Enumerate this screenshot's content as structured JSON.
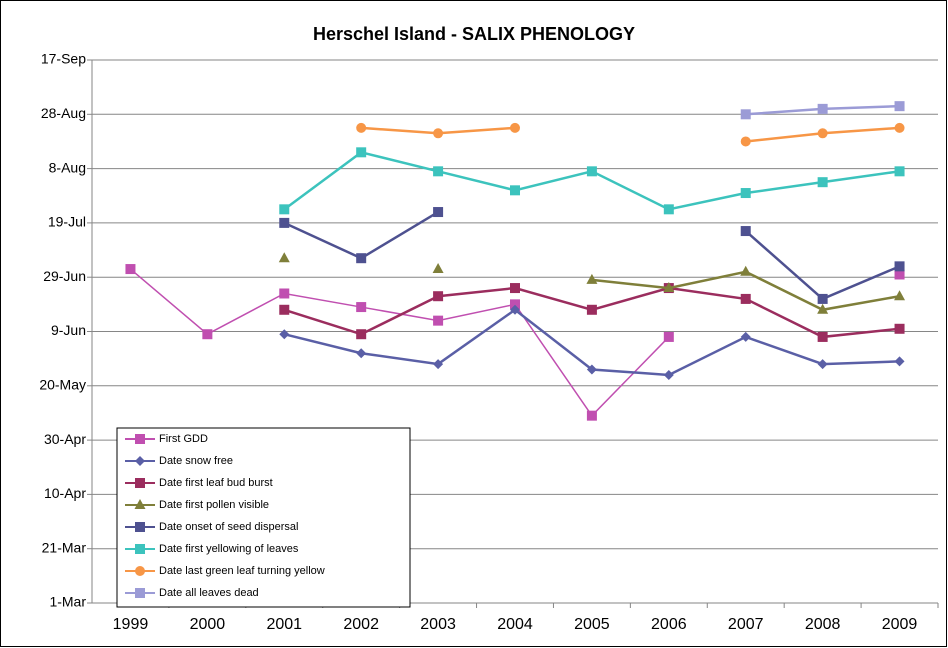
{
  "chart_data": {
    "type": "line",
    "title": "Herschel Island - SALIX PHENOLOGY",
    "categories": [
      "1999",
      "2000",
      "2001",
      "2002",
      "2003",
      "2004",
      "2005",
      "2006",
      "2007",
      "2008",
      "2009"
    ],
    "ylim": [
      60,
      260
    ],
    "yticks": [
      {
        "value": 60,
        "label": "1-Mar"
      },
      {
        "value": 80,
        "label": "21-Mar"
      },
      {
        "value": 100,
        "label": "10-Apr"
      },
      {
        "value": 120,
        "label": "30-Apr"
      },
      {
        "value": 140,
        "label": "20-May"
      },
      {
        "value": 160,
        "label": "9-Jun"
      },
      {
        "value": 180,
        "label": "29-Jun"
      },
      {
        "value": 200,
        "label": "19-Jul"
      },
      {
        "value": 220,
        "label": "8-Aug"
      },
      {
        "value": 240,
        "label": "28-Aug"
      },
      {
        "value": 260,
        "label": "17-Sep"
      }
    ],
    "grid": true,
    "legend": "lower left",
    "series": [
      {
        "name": "First GDD",
        "color": "#c04fb0",
        "marker": "square",
        "values": [
          183,
          159,
          174,
          169,
          164,
          170,
          129,
          158,
          null,
          null,
          181
        ]
      },
      {
        "name": "Date snow free",
        "color": "#5a5fa6",
        "marker": "diamond",
        "values": [
          null,
          null,
          159,
          152,
          148,
          168,
          146,
          144,
          158,
          148,
          149
        ]
      },
      {
        "name": "Date first leaf bud burst",
        "color": "#9b2d5e",
        "marker": "square",
        "values": [
          null,
          null,
          168,
          159,
          173,
          176,
          168,
          176,
          172,
          158,
          161
        ]
      },
      {
        "name": "Date first pollen visible",
        "color": "#7f7f3a",
        "marker": "triangle",
        "values": [
          null,
          null,
          187,
          null,
          183,
          null,
          179,
          176,
          182,
          168,
          173
        ]
      },
      {
        "name": "Date onset of seed dispersal",
        "color": "#4e5190",
        "marker": "square",
        "values": [
          null,
          null,
          200,
          187,
          204,
          null,
          null,
          null,
          197,
          172,
          184
        ]
      },
      {
        "name": "Date first yellowing of leaves",
        "color": "#3cc3bd",
        "marker": "square",
        "values": [
          null,
          null,
          205,
          226,
          219,
          212,
          219,
          205,
          211,
          215,
          219
        ]
      },
      {
        "name": "Date last green leaf turning yellow",
        "color": "#f79646",
        "marker": "circle",
        "values": [
          null,
          null,
          null,
          235,
          233,
          235,
          null,
          null,
          230,
          233,
          235
        ]
      },
      {
        "name": "Date all leaves dead",
        "color": "#9b9bd6",
        "marker": "square",
        "values": [
          null,
          null,
          null,
          null,
          null,
          null,
          null,
          null,
          240,
          242,
          243
        ]
      }
    ]
  }
}
